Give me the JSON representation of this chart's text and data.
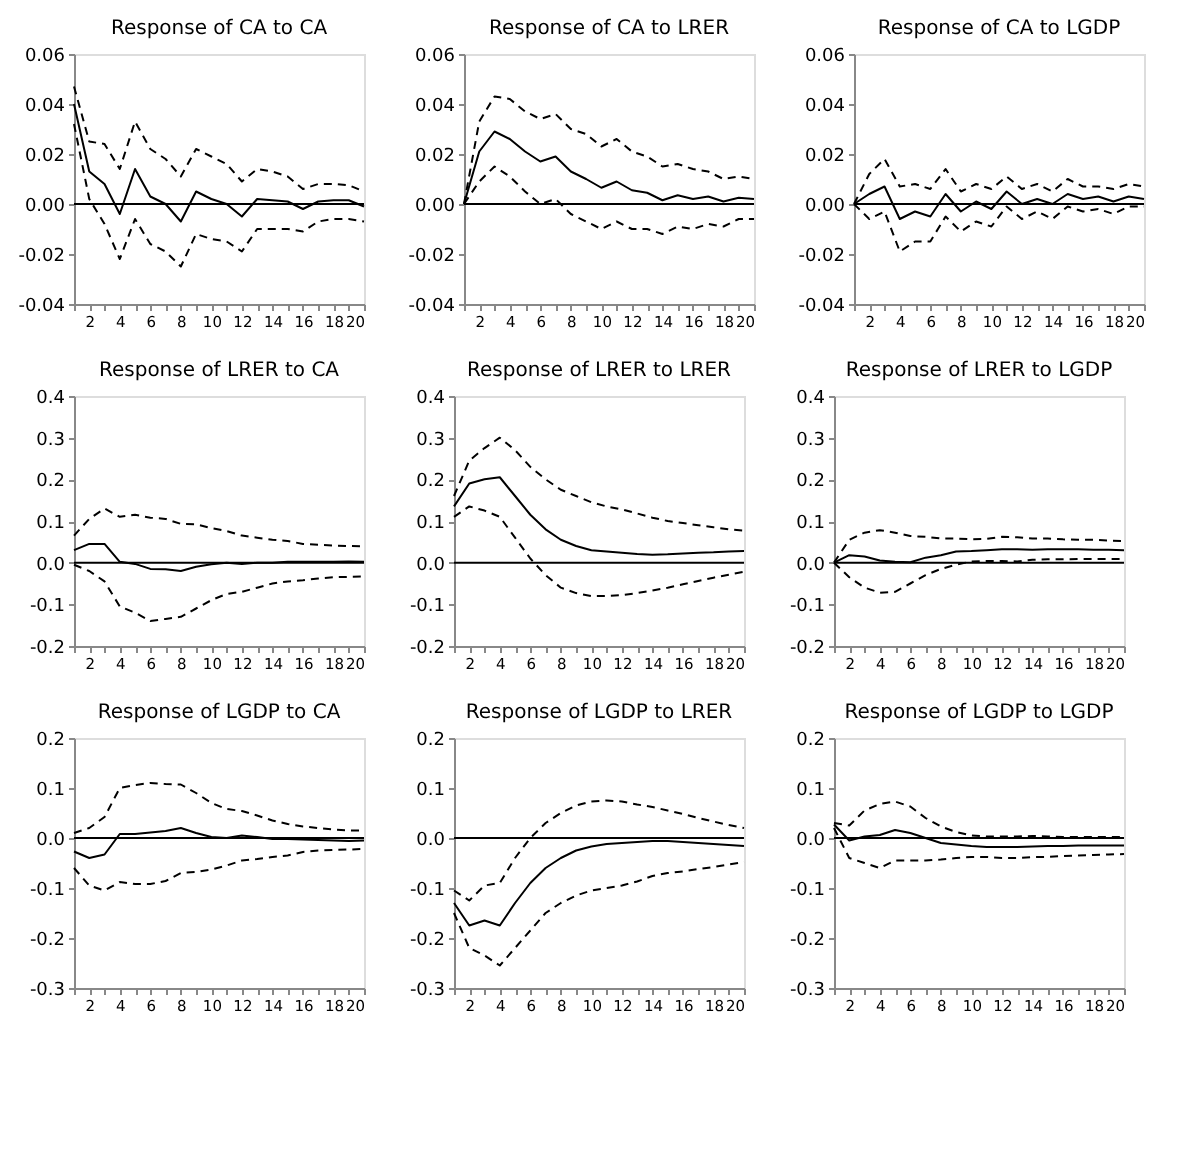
{
  "chart_data": [
    {
      "type": "line",
      "title": "Response of CA to CA",
      "x": [
        1,
        2,
        3,
        4,
        5,
        6,
        7,
        8,
        9,
        10,
        11,
        12,
        13,
        14,
        15,
        16,
        17,
        18,
        19,
        20
      ],
      "xlim": [
        1,
        20
      ],
      "xticks": [
        {
          "value": 1,
          "label": null
        },
        2,
        {
          "value": 3,
          "label": null
        },
        4,
        {
          "value": 5,
          "label": null
        },
        6,
        {
          "value": 7,
          "label": null
        },
        8,
        {
          "value": 9,
          "label": null
        },
        10,
        {
          "value": 11,
          "label": null
        },
        12,
        {
          "value": 13,
          "label": null
        },
        14,
        {
          "value": 15,
          "label": null
        },
        16,
        {
          "value": 17,
          "label": null
        },
        18,
        {
          "value": 19,
          "label": null
        },
        20
      ],
      "ylim": [
        -0.04,
        0.06
      ],
      "yticks": [
        {
          "value": -0.04,
          "label": "-0.04"
        },
        {
          "value": -0.02,
          "label": "-0.02"
        },
        {
          "value": 0,
          "label": "0.00"
        },
        {
          "value": 0.02,
          "label": "0.02"
        },
        {
          "value": 0.04,
          "label": "0.04"
        },
        {
          "value": 0.06,
          "label": "0.06"
        }
      ],
      "grid": false,
      "ref_lines": [
        {
          "axis": "y",
          "value": 0
        }
      ],
      "series": [
        {
          "color": "#000000",
          "line_style": "solid",
          "values": [
            0.04,
            0.013,
            0.008,
            -0.004,
            0.014,
            0.003,
            0.0,
            -0.007,
            0.005,
            0.002,
            0.0,
            -0.005,
            0.002,
            0.0015,
            0.001,
            -0.002,
            0.001,
            0.0015,
            0.0015,
            -0.001
          ]
        },
        {
          "color": "#000000",
          "line_style": "dashed",
          "values": [
            0.047,
            0.025,
            0.024,
            0.014,
            0.033,
            0.022,
            0.018,
            0.011,
            0.022,
            0.019,
            0.016,
            0.009,
            0.014,
            0.013,
            0.011,
            0.006,
            0.008,
            0.008,
            0.0075,
            0.005
          ]
        },
        {
          "color": "#000000",
          "line_style": "dashed",
          "values": [
            0.032,
            0.002,
            -0.008,
            -0.022,
            -0.006,
            -0.016,
            -0.019,
            -0.025,
            -0.012,
            -0.014,
            -0.015,
            -0.019,
            -0.01,
            -0.01,
            -0.01,
            -0.011,
            -0.007,
            -0.006,
            -0.006,
            -0.007
          ]
        }
      ]
    },
    {
      "type": "line",
      "title": "Response of CA to LRER",
      "x": [
        1,
        2,
        3,
        4,
        5,
        6,
        7,
        8,
        9,
        10,
        11,
        12,
        13,
        14,
        15,
        16,
        17,
        18,
        19,
        20
      ],
      "xlim": [
        1,
        20
      ],
      "xticks": [
        {
          "value": 1,
          "label": null
        },
        2,
        {
          "value": 3,
          "label": null
        },
        4,
        {
          "value": 5,
          "label": null
        },
        6,
        {
          "value": 7,
          "label": null
        },
        8,
        {
          "value": 9,
          "label": null
        },
        10,
        {
          "value": 11,
          "label": null
        },
        12,
        {
          "value": 13,
          "label": null
        },
        14,
        {
          "value": 15,
          "label": null
        },
        16,
        {
          "value": 17,
          "label": null
        },
        18,
        {
          "value": 19,
          "label": null
        },
        20
      ],
      "ylim": [
        -0.04,
        0.06
      ],
      "yticks": [
        {
          "value": -0.04,
          "label": "-0.04"
        },
        {
          "value": -0.02,
          "label": "-0.02"
        },
        {
          "value": 0,
          "label": "0.00"
        },
        {
          "value": 0.02,
          "label": "0.02"
        },
        {
          "value": 0.04,
          "label": "0.04"
        },
        {
          "value": 0.06,
          "label": "0.06"
        }
      ],
      "grid": false,
      "ref_lines": [
        {
          "axis": "y",
          "value": 0
        }
      ],
      "series": [
        {
          "color": "#000000",
          "line_style": "solid",
          "values": [
            0.0,
            0.021,
            0.029,
            0.026,
            0.021,
            0.017,
            0.019,
            0.013,
            0.01,
            0.0065,
            0.009,
            0.0055,
            0.0045,
            0.0015,
            0.0035,
            0.002,
            0.003,
            0.001,
            0.0025,
            0.002
          ]
        },
        {
          "color": "#000000",
          "line_style": "dashed",
          "values": [
            0.0,
            0.033,
            0.043,
            0.042,
            0.037,
            0.034,
            0.036,
            0.03,
            0.028,
            0.023,
            0.026,
            0.021,
            0.019,
            0.015,
            0.016,
            0.014,
            0.013,
            0.01,
            0.011,
            0.01
          ]
        },
        {
          "color": "#000000",
          "line_style": "dashed",
          "values": [
            0.0,
            0.009,
            0.015,
            0.011,
            0.005,
            0.0,
            0.002,
            -0.004,
            -0.007,
            -0.01,
            -0.007,
            -0.01,
            -0.01,
            -0.012,
            -0.009,
            -0.01,
            -0.008,
            -0.009,
            -0.006,
            -0.006
          ]
        }
      ]
    },
    {
      "type": "line",
      "title": "Response of CA to LGDP",
      "x": [
        1,
        2,
        3,
        4,
        5,
        6,
        7,
        8,
        9,
        10,
        11,
        12,
        13,
        14,
        15,
        16,
        17,
        18,
        19,
        20
      ],
      "xlim": [
        1,
        20
      ],
      "xticks": [
        {
          "value": 1,
          "label": null
        },
        2,
        {
          "value": 3,
          "label": null
        },
        4,
        {
          "value": 5,
          "label": null
        },
        6,
        {
          "value": 7,
          "label": null
        },
        8,
        {
          "value": 9,
          "label": null
        },
        10,
        {
          "value": 11,
          "label": null
        },
        12,
        {
          "value": 13,
          "label": null
        },
        14,
        {
          "value": 15,
          "label": null
        },
        16,
        {
          "value": 17,
          "label": null
        },
        18,
        {
          "value": 19,
          "label": null
        },
        20
      ],
      "ylim": [
        -0.04,
        0.06
      ],
      "yticks": [
        {
          "value": -0.04,
          "label": "-0.04"
        },
        {
          "value": -0.02,
          "label": "-0.02"
        },
        {
          "value": 0,
          "label": "0.00"
        },
        {
          "value": 0.02,
          "label": "0.02"
        },
        {
          "value": 0.04,
          "label": "0.04"
        },
        {
          "value": 0.06,
          "label": "0.06"
        }
      ],
      "grid": false,
      "ref_lines": [
        {
          "axis": "y",
          "value": 0
        }
      ],
      "series": [
        {
          "color": "#000000",
          "line_style": "solid",
          "values": [
            0,
            0.004,
            0.007,
            -0.006,
            -0.003,
            -0.005,
            0.004,
            -0.003,
            0.001,
            -0.002,
            0.005,
            0.0,
            0.002,
            0.0,
            0.004,
            0.002,
            0.003,
            0.001,
            0.003,
            0.002
          ]
        },
        {
          "color": "#000000",
          "line_style": "dashed",
          "values": [
            0,
            0.012,
            0.018,
            0.007,
            0.008,
            0.006,
            0.014,
            0.005,
            0.008,
            0.006,
            0.011,
            0.006,
            0.008,
            0.005,
            0.01,
            0.007,
            0.007,
            0.006,
            0.008,
            0.007
          ]
        },
        {
          "color": "#000000",
          "line_style": "dashed",
          "values": [
            0,
            -0.006,
            -0.003,
            -0.019,
            -0.015,
            -0.015,
            -0.005,
            -0.011,
            -0.007,
            -0.009,
            -0.001,
            -0.006,
            -0.003,
            -0.006,
            -0.001,
            -0.003,
            -0.002,
            -0.004,
            -0.001,
            -0.001
          ]
        }
      ]
    },
    {
      "type": "line",
      "title": "Response of LRER to CA",
      "x": [
        1,
        2,
        3,
        4,
        5,
        6,
        7,
        8,
        9,
        10,
        11,
        12,
        13,
        14,
        15,
        16,
        17,
        18,
        19,
        20
      ],
      "xlim": [
        1,
        20
      ],
      "xticks": [
        {
          "value": 1,
          "label": null
        },
        2,
        {
          "value": 3,
          "label": null
        },
        4,
        {
          "value": 5,
          "label": null
        },
        6,
        {
          "value": 7,
          "label": null
        },
        8,
        {
          "value": 9,
          "label": null
        },
        10,
        {
          "value": 11,
          "label": null
        },
        12,
        {
          "value": 13,
          "label": null
        },
        14,
        {
          "value": 15,
          "label": null
        },
        16,
        {
          "value": 17,
          "label": null
        },
        18,
        {
          "value": 19,
          "label": null
        },
        20
      ],
      "ylim": [
        -0.2,
        0.4
      ],
      "yticks": [
        -0.2,
        -0.1,
        {
          "value": 0,
          "label": "0.0"
        },
        0.1,
        0.2,
        0.3,
        0.4
      ],
      "grid": false,
      "ref_lines": [
        {
          "axis": "y",
          "value": 0
        }
      ],
      "series": [
        {
          "color": "#000000",
          "line_style": "solid",
          "values": [
            0.03,
            0.045,
            0.045,
            0.002,
            -0.003,
            -0.015,
            -0.016,
            -0.02,
            -0.01,
            -0.004,
            0.0,
            -0.003,
            0.0,
            0.0,
            0.002,
            0.002,
            0.002,
            0.002,
            0.003,
            0.002
          ]
        },
        {
          "color": "#000000",
          "line_style": "dashed",
          "values": [
            0.065,
            0.105,
            0.13,
            0.11,
            0.115,
            0.108,
            0.105,
            0.093,
            0.092,
            0.083,
            0.076,
            0.065,
            0.06,
            0.055,
            0.052,
            0.045,
            0.043,
            0.041,
            0.04,
            0.039
          ]
        },
        {
          "color": "#000000",
          "line_style": "dashed",
          "values": [
            -0.005,
            -0.02,
            -0.045,
            -0.105,
            -0.12,
            -0.14,
            -0.135,
            -0.13,
            -0.11,
            -0.09,
            -0.075,
            -0.07,
            -0.06,
            -0.05,
            -0.045,
            -0.042,
            -0.038,
            -0.035,
            -0.034,
            -0.033
          ]
        }
      ]
    },
    {
      "type": "line",
      "title": "Response of LRER to LRER",
      "x": [
        1,
        2,
        3,
        4,
        5,
        6,
        7,
        8,
        9,
        10,
        11,
        12,
        13,
        14,
        15,
        16,
        17,
        18,
        19,
        20
      ],
      "xlim": [
        1,
        20
      ],
      "xticks": [
        {
          "value": 1,
          "label": null
        },
        2,
        {
          "value": 3,
          "label": null
        },
        4,
        {
          "value": 5,
          "label": null
        },
        6,
        {
          "value": 7,
          "label": null
        },
        8,
        {
          "value": 9,
          "label": null
        },
        10,
        {
          "value": 11,
          "label": null
        },
        12,
        {
          "value": 13,
          "label": null
        },
        14,
        {
          "value": 15,
          "label": null
        },
        16,
        {
          "value": 17,
          "label": null
        },
        18,
        {
          "value": 19,
          "label": null
        },
        20
      ],
      "ylim": [
        -0.2,
        0.4
      ],
      "yticks": [
        -0.2,
        -0.1,
        {
          "value": 0,
          "label": "0.0"
        },
        0.1,
        0.2,
        0.3,
        0.4
      ],
      "grid": false,
      "ref_lines": [
        {
          "axis": "y",
          "value": 0
        }
      ],
      "series": [
        {
          "color": "#000000",
          "line_style": "solid",
          "values": [
            0.135,
            0.19,
            0.2,
            0.205,
            0.16,
            0.115,
            0.08,
            0.055,
            0.04,
            0.03,
            0.027,
            0.024,
            0.021,
            0.019,
            0.02,
            0.022,
            0.024,
            0.025,
            0.027,
            0.028
          ]
        },
        {
          "color": "#000000",
          "line_style": "dashed",
          "values": [
            0.16,
            0.245,
            0.275,
            0.3,
            0.27,
            0.23,
            0.2,
            0.175,
            0.16,
            0.145,
            0.135,
            0.128,
            0.118,
            0.108,
            0.1,
            0.095,
            0.09,
            0.085,
            0.08,
            0.077
          ]
        },
        {
          "color": "#000000",
          "line_style": "dashed",
          "values": [
            0.11,
            0.135,
            0.125,
            0.11,
            0.06,
            0.01,
            -0.03,
            -0.06,
            -0.073,
            -0.08,
            -0.08,
            -0.078,
            -0.073,
            -0.067,
            -0.06,
            -0.052,
            -0.044,
            -0.036,
            -0.029,
            -0.022
          ]
        }
      ]
    },
    {
      "type": "line",
      "title": "Response of LRER to LGDP",
      "x": [
        1,
        2,
        3,
        4,
        5,
        6,
        7,
        8,
        9,
        10,
        11,
        12,
        13,
        14,
        15,
        16,
        17,
        18,
        19,
        20
      ],
      "xlim": [
        1,
        20
      ],
      "xticks": [
        {
          "value": 1,
          "label": null
        },
        2,
        {
          "value": 3,
          "label": null
        },
        4,
        {
          "value": 5,
          "label": null
        },
        6,
        {
          "value": 7,
          "label": null
        },
        8,
        {
          "value": 9,
          "label": null
        },
        10,
        {
          "value": 11,
          "label": null
        },
        12,
        {
          "value": 13,
          "label": null
        },
        14,
        {
          "value": 15,
          "label": null
        },
        16,
        {
          "value": 17,
          "label": null
        },
        18,
        {
          "value": 19,
          "label": null
        },
        20
      ],
      "ylim": [
        -0.2,
        0.4
      ],
      "yticks": [
        -0.2,
        -0.1,
        {
          "value": 0,
          "label": "0.0"
        },
        0.1,
        0.2,
        0.3,
        0.4
      ],
      "grid": false,
      "ref_lines": [
        {
          "axis": "y",
          "value": 0
        }
      ],
      "series": [
        {
          "color": "#000000",
          "line_style": "solid",
          "values": [
            0,
            0.018,
            0.015,
            0.005,
            0.002,
            0.001,
            0.012,
            0.018,
            0.027,
            0.028,
            0.03,
            0.032,
            0.032,
            0.031,
            0.032,
            0.032,
            0.032,
            0.031,
            0.031,
            0.03
          ]
        },
        {
          "color": "#000000",
          "line_style": "dashed",
          "values": [
            0,
            0.055,
            0.072,
            0.078,
            0.072,
            0.064,
            0.062,
            0.058,
            0.058,
            0.056,
            0.057,
            0.062,
            0.061,
            0.058,
            0.058,
            0.056,
            0.055,
            0.055,
            0.053,
            0.052
          ]
        },
        {
          "color": "#000000",
          "line_style": "dashed",
          "values": [
            0,
            -0.035,
            -0.06,
            -0.072,
            -0.07,
            -0.05,
            -0.03,
            -0.015,
            -0.005,
            0.003,
            0.004,
            0.004,
            0.003,
            0.007,
            0.008,
            0.008,
            0.009,
            0.009,
            0.009,
            0.009
          ]
        }
      ]
    },
    {
      "type": "line",
      "title": "Response of LGDP to CA",
      "x": [
        1,
        2,
        3,
        4,
        5,
        6,
        7,
        8,
        9,
        10,
        11,
        12,
        13,
        14,
        15,
        16,
        17,
        18,
        19,
        20
      ],
      "xlim": [
        1,
        20
      ],
      "xticks": [
        {
          "value": 1,
          "label": null
        },
        2,
        {
          "value": 3,
          "label": null
        },
        4,
        {
          "value": 5,
          "label": null
        },
        6,
        {
          "value": 7,
          "label": null
        },
        8,
        {
          "value": 9,
          "label": null
        },
        10,
        {
          "value": 11,
          "label": null
        },
        12,
        {
          "value": 13,
          "label": null
        },
        14,
        {
          "value": 15,
          "label": null
        },
        16,
        {
          "value": 17,
          "label": null
        },
        18,
        {
          "value": 19,
          "label": null
        },
        20
      ],
      "ylim": [
        -0.3,
        0.2
      ],
      "yticks": [
        -0.3,
        -0.2,
        -0.1,
        {
          "value": 0,
          "label": "0.0"
        },
        0.1,
        0.2
      ],
      "grid": false,
      "ref_lines": [
        {
          "axis": "y",
          "value": 0
        }
      ],
      "series": [
        {
          "color": "#000000",
          "line_style": "solid",
          "values": [
            -0.027,
            -0.04,
            -0.033,
            0.008,
            0.008,
            0.011,
            0.014,
            0.02,
            0.01,
            0.002,
            0.0,
            0.005,
            0.002,
            -0.002,
            -0.002,
            -0.003,
            -0.004,
            -0.005,
            -0.006,
            -0.005
          ]
        },
        {
          "color": "#000000",
          "line_style": "dashed",
          "values": [
            0.01,
            0.02,
            0.042,
            0.1,
            0.106,
            0.11,
            0.108,
            0.107,
            0.09,
            0.07,
            0.058,
            0.054,
            0.045,
            0.035,
            0.028,
            0.023,
            0.02,
            0.017,
            0.015,
            0.015
          ]
        },
        {
          "color": "#000000",
          "line_style": "dashed",
          "values": [
            -0.06,
            -0.095,
            -0.105,
            -0.088,
            -0.092,
            -0.092,
            -0.086,
            -0.07,
            -0.068,
            -0.063,
            -0.055,
            -0.045,
            -0.042,
            -0.038,
            -0.035,
            -0.028,
            -0.025,
            -0.024,
            -0.023,
            -0.022
          ]
        }
      ]
    },
    {
      "type": "line",
      "title": "Response of LGDP to LRER",
      "x": [
        1,
        2,
        3,
        4,
        5,
        6,
        7,
        8,
        9,
        10,
        11,
        12,
        13,
        14,
        15,
        16,
        17,
        18,
        19,
        20
      ],
      "xlim": [
        1,
        20
      ],
      "xticks": [
        {
          "value": 1,
          "label": null
        },
        2,
        {
          "value": 3,
          "label": null
        },
        4,
        {
          "value": 5,
          "label": null
        },
        6,
        {
          "value": 7,
          "label": null
        },
        8,
        {
          "value": 9,
          "label": null
        },
        10,
        {
          "value": 11,
          "label": null
        },
        12,
        {
          "value": 13,
          "label": null
        },
        14,
        {
          "value": 15,
          "label": null
        },
        16,
        {
          "value": 17,
          "label": null
        },
        18,
        {
          "value": 19,
          "label": null
        },
        20
      ],
      "ylim": [
        -0.3,
        0.2
      ],
      "yticks": [
        -0.3,
        -0.2,
        -0.1,
        {
          "value": 0,
          "label": "0.0"
        },
        0.1,
        0.2
      ],
      "grid": false,
      "ref_lines": [
        {
          "axis": "y",
          "value": 0
        }
      ],
      "series": [
        {
          "color": "#000000",
          "line_style": "solid",
          "values": [
            -0.13,
            -0.175,
            -0.165,
            -0.175,
            -0.13,
            -0.09,
            -0.06,
            -0.04,
            -0.025,
            -0.017,
            -0.012,
            -0.01,
            -0.008,
            -0.006,
            -0.006,
            -0.008,
            -0.01,
            -0.012,
            -0.014,
            -0.016
          ]
        },
        {
          "color": "#000000",
          "line_style": "dashed",
          "values": [
            -0.105,
            -0.125,
            -0.095,
            -0.09,
            -0.04,
            0.0,
            0.03,
            0.05,
            0.065,
            0.073,
            0.075,
            0.073,
            0.067,
            0.062,
            0.055,
            0.048,
            0.04,
            0.033,
            0.026,
            0.02
          ]
        },
        {
          "color": "#000000",
          "line_style": "dashed",
          "values": [
            -0.15,
            -0.22,
            -0.235,
            -0.255,
            -0.22,
            -0.185,
            -0.15,
            -0.13,
            -0.115,
            -0.105,
            -0.1,
            -0.095,
            -0.087,
            -0.076,
            -0.07,
            -0.067,
            -0.062,
            -0.058,
            -0.053,
            -0.048
          ]
        }
      ]
    },
    {
      "type": "line",
      "title": "Response of LGDP to LGDP",
      "x": [
        1,
        2,
        3,
        4,
        5,
        6,
        7,
        8,
        9,
        10,
        11,
        12,
        13,
        14,
        15,
        16,
        17,
        18,
        19,
        20
      ],
      "xlim": [
        1,
        20
      ],
      "xticks": [
        {
          "value": 1,
          "label": null
        },
        2,
        {
          "value": 3,
          "label": null
        },
        4,
        {
          "value": 5,
          "label": null
        },
        6,
        {
          "value": 7,
          "label": null
        },
        8,
        {
          "value": 9,
          "label": null
        },
        10,
        {
          "value": 11,
          "label": null
        },
        12,
        {
          "value": 13,
          "label": null
        },
        14,
        {
          "value": 15,
          "label": null
        },
        16,
        {
          "value": 17,
          "label": null
        },
        18,
        {
          "value": 19,
          "label": null
        },
        20
      ],
      "ylim": [
        -0.3,
        0.2
      ],
      "yticks": [
        -0.3,
        -0.2,
        -0.1,
        {
          "value": 0,
          "label": "0.0"
        },
        0.1,
        0.2
      ],
      "grid": false,
      "ref_lines": [
        {
          "axis": "y",
          "value": 0
        }
      ],
      "series": [
        {
          "color": "#000000",
          "line_style": "solid",
          "values": [
            0.027,
            -0.005,
            0.003,
            0.006,
            0.016,
            0.01,
            0.0,
            -0.01,
            -0.013,
            -0.016,
            -0.018,
            -0.018,
            -0.018,
            -0.017,
            -0.016,
            -0.016,
            -0.015,
            -0.015,
            -0.015,
            -0.015
          ]
        },
        {
          "color": "#000000",
          "line_style": "dashed",
          "values": [
            0.03,
            0.025,
            0.055,
            0.068,
            0.073,
            0.063,
            0.04,
            0.023,
            0.012,
            0.005,
            0.003,
            0.003,
            0.003,
            0.004,
            0.003,
            0.002,
            0.002,
            0.002,
            0.002,
            0.002
          ]
        },
        {
          "color": "#000000",
          "line_style": "dashed",
          "values": [
            0.02,
            -0.04,
            -0.05,
            -0.06,
            -0.045,
            -0.045,
            -0.045,
            -0.043,
            -0.04,
            -0.038,
            -0.038,
            -0.04,
            -0.04,
            -0.038,
            -0.038,
            -0.036,
            -0.035,
            -0.034,
            -0.033,
            -0.032
          ]
        }
      ]
    }
  ]
}
